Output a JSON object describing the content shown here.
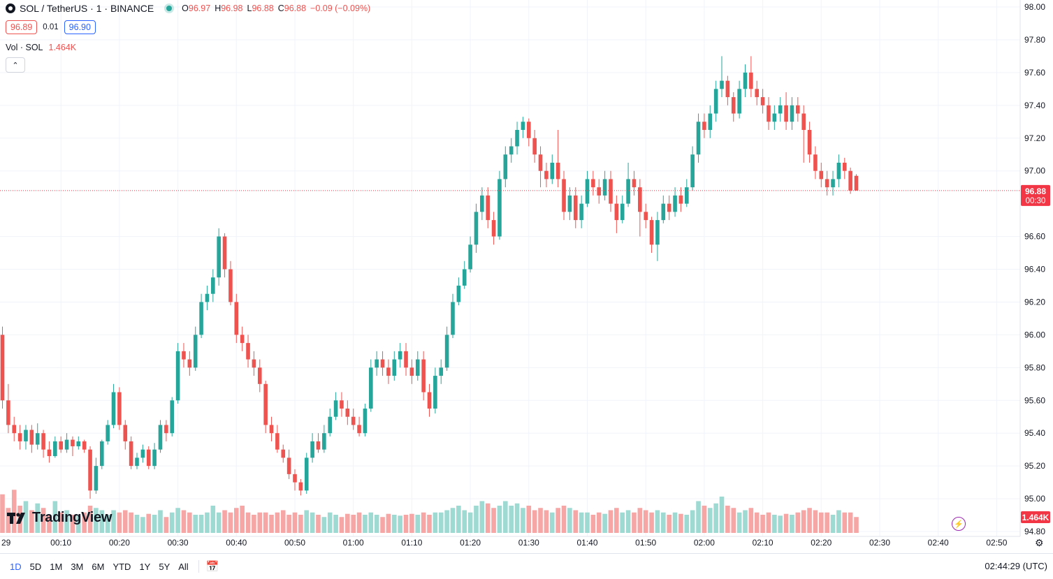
{
  "header": {
    "symbol": "SOL / TetherUS · 1 · BINANCE",
    "o_label": "O",
    "o_value": "96.97",
    "h_label": "H",
    "h_value": "96.98",
    "l_label": "L",
    "l_value": "96.88",
    "c_label": "C",
    "c_value": "96.88",
    "change": "−0.09 (−0.09%)",
    "bid": "96.89",
    "spread": "0.01",
    "ask": "96.90",
    "vol_label": "Vol · SOL",
    "vol_value": "1.464K",
    "collapse": "⌃"
  },
  "brand": {
    "logo_text": "TradingView"
  },
  "bottom": {
    "ranges": [
      "1D",
      "5D",
      "1M",
      "3M",
      "6M",
      "YTD",
      "1Y",
      "5Y",
      "All"
    ],
    "active_range": "1D",
    "clock": "02:44:29 (UTC)"
  },
  "colors": {
    "up": "#26a69a",
    "down": "#ef5350",
    "up_vol": "#9ed9d2",
    "down_vol": "#f5a6a5",
    "price_tag": "#f23645"
  },
  "chart_data": {
    "type": "candlestick",
    "title": "SOL / TetherUS · 1 · BINANCE",
    "y_ticks": [
      "98.00",
      "97.80",
      "97.60",
      "97.40",
      "97.20",
      "97.00",
      "96.60",
      "96.40",
      "96.20",
      "96.00",
      "95.80",
      "95.60",
      "95.40",
      "95.20",
      "95.00",
      "94.80"
    ],
    "y_range": [
      94.8,
      98.0
    ],
    "x_ticks": [
      "29",
      "00:10",
      "00:20",
      "00:30",
      "00:40",
      "00:50",
      "01:00",
      "01:10",
      "01:20",
      "01:30",
      "01:40",
      "01:50",
      "02:00",
      "02:10",
      "02:20",
      "02:30",
      "02:40",
      "02:50"
    ],
    "x_tick_minutes": [
      -1.0,
      10,
      20,
      30,
      40,
      50,
      60,
      70,
      80,
      90,
      100,
      110,
      120,
      130,
      140,
      150,
      160,
      170
    ],
    "last_price": "96.88",
    "last_price_num": 96.88,
    "countdown": "00:30",
    "volume_label": "1.464K",
    "volume_max": 3.0,
    "candles": [
      [
        96.0,
        95.6,
        96.05,
        95.55,
        0.85
      ],
      [
        95.6,
        95.45,
        95.7,
        95.4,
        0.55
      ],
      [
        95.45,
        95.4,
        95.5,
        95.35,
        0.95
      ],
      [
        95.4,
        95.35,
        95.45,
        95.3,
        0.6
      ],
      [
        95.35,
        95.42,
        95.45,
        95.3,
        0.7
      ],
      [
        95.42,
        95.33,
        95.45,
        95.28,
        0.5
      ],
      [
        95.33,
        95.4,
        95.46,
        95.3,
        0.65
      ],
      [
        95.4,
        95.3,
        95.42,
        95.25,
        0.55
      ],
      [
        95.3,
        95.26,
        95.35,
        95.22,
        0.4
      ],
      [
        95.26,
        95.35,
        95.38,
        95.25,
        0.7
      ],
      [
        95.35,
        95.3,
        95.38,
        95.28,
        0.45
      ],
      [
        95.3,
        95.36,
        95.4,
        95.28,
        0.5
      ],
      [
        95.36,
        95.32,
        95.38,
        95.26,
        0.4
      ],
      [
        95.32,
        95.35,
        95.38,
        95.3,
        0.38
      ],
      [
        95.35,
        95.3,
        95.36,
        95.28,
        0.45
      ],
      [
        95.3,
        95.05,
        95.32,
        95.0,
        0.6
      ],
      [
        95.05,
        95.2,
        95.25,
        95.03,
        0.55
      ],
      [
        95.2,
        95.35,
        95.36,
        95.18,
        0.5
      ],
      [
        95.35,
        95.45,
        95.48,
        95.33,
        0.4
      ],
      [
        95.45,
        95.65,
        95.7,
        95.43,
        0.5
      ],
      [
        95.65,
        95.45,
        95.68,
        95.42,
        0.45
      ],
      [
        95.45,
        95.35,
        95.48,
        95.3,
        0.5
      ],
      [
        95.35,
        95.2,
        95.38,
        95.18,
        0.45
      ],
      [
        95.2,
        95.25,
        95.28,
        95.18,
        0.4
      ],
      [
        95.25,
        95.3,
        95.33,
        95.22,
        0.35
      ],
      [
        95.3,
        95.2,
        95.32,
        95.18,
        0.42
      ],
      [
        95.2,
        95.3,
        95.34,
        95.18,
        0.4
      ],
      [
        95.3,
        95.45,
        95.48,
        95.28,
        0.5
      ],
      [
        95.45,
        95.4,
        95.48,
        95.35,
        0.35
      ],
      [
        95.4,
        95.6,
        95.62,
        95.38,
        0.45
      ],
      [
        95.6,
        95.9,
        95.95,
        95.58,
        0.55
      ],
      [
        95.9,
        95.85,
        95.95,
        95.8,
        0.5
      ],
      [
        95.85,
        95.8,
        95.9,
        95.75,
        0.45
      ],
      [
        95.8,
        96.0,
        96.05,
        95.78,
        0.4
      ],
      [
        96.0,
        96.2,
        96.25,
        95.98,
        0.4
      ],
      [
        96.2,
        96.25,
        96.3,
        96.15,
        0.45
      ],
      [
        96.25,
        96.35,
        96.4,
        96.2,
        0.6
      ],
      [
        96.35,
        96.6,
        96.65,
        96.3,
        0.45
      ],
      [
        96.6,
        96.4,
        96.62,
        96.35,
        0.5
      ],
      [
        96.4,
        96.2,
        96.45,
        96.18,
        0.45
      ],
      [
        96.2,
        96.0,
        96.25,
        95.95,
        0.55
      ],
      [
        96.0,
        95.95,
        96.05,
        95.9,
        0.6
      ],
      [
        95.95,
        95.85,
        96.0,
        95.8,
        0.45
      ],
      [
        95.85,
        95.8,
        95.9,
        95.75,
        0.4
      ],
      [
        95.8,
        95.7,
        95.85,
        95.65,
        0.45
      ],
      [
        95.7,
        95.45,
        95.72,
        95.4,
        0.45
      ],
      [
        95.45,
        95.4,
        95.5,
        95.35,
        0.4
      ],
      [
        95.4,
        95.3,
        95.45,
        95.28,
        0.45
      ],
      [
        95.3,
        95.25,
        95.33,
        95.22,
        0.5
      ],
      [
        95.25,
        95.15,
        95.3,
        95.12,
        0.4
      ],
      [
        95.15,
        95.1,
        95.18,
        95.05,
        0.45
      ],
      [
        95.1,
        95.05,
        95.12,
        95.02,
        0.4
      ],
      [
        95.05,
        95.25,
        95.28,
        95.03,
        0.5
      ],
      [
        95.25,
        95.35,
        95.4,
        95.22,
        0.45
      ],
      [
        95.35,
        95.3,
        95.4,
        95.28,
        0.4
      ],
      [
        95.3,
        95.4,
        95.45,
        95.28,
        0.35
      ],
      [
        95.4,
        95.5,
        95.55,
        95.38,
        0.45
      ],
      [
        95.5,
        95.6,
        95.65,
        95.48,
        0.4
      ],
      [
        95.6,
        95.55,
        95.65,
        95.5,
        0.35
      ],
      [
        95.55,
        95.5,
        95.6,
        95.45,
        0.42
      ],
      [
        95.5,
        95.45,
        95.55,
        95.42,
        0.4
      ],
      [
        95.45,
        95.4,
        95.5,
        95.38,
        0.45
      ],
      [
        95.4,
        95.55,
        95.58,
        95.38,
        0.4
      ],
      [
        95.55,
        95.8,
        95.85,
        95.53,
        0.45
      ],
      [
        95.8,
        95.85,
        95.9,
        95.75,
        0.4
      ],
      [
        95.85,
        95.8,
        95.9,
        95.75,
        0.35
      ],
      [
        95.8,
        95.75,
        95.85,
        95.7,
        0.42
      ],
      [
        95.75,
        95.85,
        95.9,
        95.72,
        0.4
      ],
      [
        95.85,
        95.9,
        95.95,
        95.8,
        0.38
      ],
      [
        95.9,
        95.8,
        95.95,
        95.75,
        0.4
      ],
      [
        95.8,
        95.75,
        95.85,
        95.7,
        0.42
      ],
      [
        95.75,
        95.85,
        95.9,
        95.72,
        0.4
      ],
      [
        95.85,
        95.65,
        95.9,
        95.6,
        0.45
      ],
      [
        95.65,
        95.55,
        95.7,
        95.5,
        0.4
      ],
      [
        95.55,
        95.75,
        95.8,
        95.52,
        0.45
      ],
      [
        95.75,
        95.8,
        95.85,
        95.7,
        0.45
      ],
      [
        95.8,
        96.0,
        96.05,
        95.78,
        0.5
      ],
      [
        96.0,
        96.2,
        96.25,
        95.98,
        0.55
      ],
      [
        96.2,
        96.3,
        96.35,
        96.18,
        0.6
      ],
      [
        96.3,
        96.4,
        96.45,
        96.28,
        0.5
      ],
      [
        96.4,
        96.55,
        96.6,
        96.38,
        0.45
      ],
      [
        96.55,
        96.75,
        96.8,
        96.5,
        0.6
      ],
      [
        96.75,
        96.85,
        96.9,
        96.7,
        0.7
      ],
      [
        96.85,
        96.7,
        96.9,
        96.65,
        0.65
      ],
      [
        96.7,
        96.6,
        96.75,
        96.55,
        0.55
      ],
      [
        96.6,
        96.95,
        97.0,
        96.58,
        0.6
      ],
      [
        96.95,
        97.1,
        97.15,
        96.9,
        0.7
      ],
      [
        97.1,
        97.15,
        97.2,
        97.05,
        0.6
      ],
      [
        97.15,
        97.25,
        97.3,
        97.1,
        0.65
      ],
      [
        97.25,
        97.3,
        97.33,
        97.2,
        0.55
      ],
      [
        97.3,
        97.2,
        97.32,
        97.15,
        0.6
      ],
      [
        97.2,
        97.1,
        97.25,
        97.05,
        0.5
      ],
      [
        97.1,
        97.0,
        97.15,
        96.9,
        0.55
      ],
      [
        97.0,
        96.95,
        97.05,
        96.9,
        0.5
      ],
      [
        96.95,
        97.05,
        97.1,
        96.92,
        0.45
      ],
      [
        97.05,
        96.95,
        97.25,
        96.9,
        0.55
      ],
      [
        96.95,
        96.75,
        97.0,
        96.7,
        0.6
      ],
      [
        96.75,
        96.85,
        96.9,
        96.7,
        0.55
      ],
      [
        96.85,
        96.7,
        96.9,
        96.65,
        0.5
      ],
      [
        96.7,
        96.8,
        96.85,
        96.65,
        0.45
      ],
      [
        96.8,
        96.95,
        97.0,
        96.78,
        0.45
      ],
      [
        96.95,
        96.9,
        97.0,
        96.85,
        0.4
      ],
      [
        96.9,
        96.85,
        96.95,
        96.8,
        0.45
      ],
      [
        96.85,
        96.95,
        97.0,
        96.82,
        0.42
      ],
      [
        96.95,
        96.8,
        97.0,
        96.75,
        0.5
      ],
      [
        96.8,
        96.7,
        96.85,
        96.62,
        0.55
      ],
      [
        96.7,
        96.8,
        96.85,
        96.68,
        0.45
      ],
      [
        96.8,
        96.95,
        97.05,
        96.78,
        0.5
      ],
      [
        96.95,
        96.9,
        97.0,
        96.85,
        0.45
      ],
      [
        96.9,
        96.75,
        96.95,
        96.6,
        0.55
      ],
      [
        96.75,
        96.7,
        96.8,
        96.65,
        0.5
      ],
      [
        96.7,
        96.55,
        96.72,
        96.5,
        0.45
      ],
      [
        96.55,
        96.7,
        96.75,
        96.45,
        0.5
      ],
      [
        96.7,
        96.8,
        96.85,
        96.68,
        0.45
      ],
      [
        96.8,
        96.75,
        96.85,
        96.7,
        0.4
      ],
      [
        96.75,
        96.85,
        96.9,
        96.72,
        0.45
      ],
      [
        96.85,
        96.8,
        96.9,
        96.75,
        0.42
      ],
      [
        96.8,
        96.9,
        96.95,
        96.78,
        0.4
      ],
      [
        96.9,
        97.1,
        97.15,
        96.88,
        0.5
      ],
      [
        97.1,
        97.3,
        97.35,
        97.05,
        0.7
      ],
      [
        97.3,
        97.25,
        97.35,
        97.2,
        0.6
      ],
      [
        97.25,
        97.35,
        97.4,
        97.2,
        0.55
      ],
      [
        97.35,
        97.5,
        97.55,
        97.3,
        0.65
      ],
      [
        97.5,
        97.55,
        97.7,
        97.45,
        0.8
      ],
      [
        97.55,
        97.45,
        97.58,
        97.4,
        0.6
      ],
      [
        97.45,
        97.35,
        97.48,
        97.3,
        0.55
      ],
      [
        97.35,
        97.5,
        97.55,
        97.32,
        0.45
      ],
      [
        97.5,
        97.6,
        97.65,
        97.45,
        0.5
      ],
      [
        97.6,
        97.5,
        97.7,
        97.45,
        0.55
      ],
      [
        97.5,
        97.45,
        97.55,
        97.4,
        0.45
      ],
      [
        97.45,
        97.4,
        97.5,
        97.35,
        0.4
      ],
      [
        97.4,
        97.3,
        97.45,
        97.25,
        0.45
      ],
      [
        97.3,
        97.35,
        97.4,
        97.25,
        0.4
      ],
      [
        97.35,
        97.4,
        97.45,
        97.3,
        0.38
      ],
      [
        97.4,
        97.3,
        97.48,
        97.25,
        0.42
      ],
      [
        97.3,
        97.4,
        97.45,
        97.25,
        0.4
      ],
      [
        97.4,
        97.35,
        97.45,
        97.3,
        0.45
      ],
      [
        97.35,
        97.25,
        97.4,
        97.05,
        0.5
      ],
      [
        97.25,
        97.1,
        97.3,
        97.05,
        0.55
      ],
      [
        97.1,
        97.0,
        97.15,
        96.95,
        0.5
      ],
      [
        97.0,
        96.95,
        97.05,
        96.9,
        0.45
      ],
      [
        96.95,
        96.9,
        97.0,
        96.85,
        0.45
      ],
      [
        96.9,
        96.95,
        97.0,
        96.85,
        0.4
      ],
      [
        96.95,
        97.05,
        97.1,
        96.9,
        0.5
      ],
      [
        97.05,
        97.0,
        97.08,
        96.95,
        0.45
      ],
      [
        97.0,
        96.88,
        97.02,
        96.86,
        0.45
      ],
      [
        96.97,
        96.88,
        96.98,
        96.88,
        0.35
      ]
    ],
    "gridlines": true,
    "price_line_style": "dotted"
  }
}
